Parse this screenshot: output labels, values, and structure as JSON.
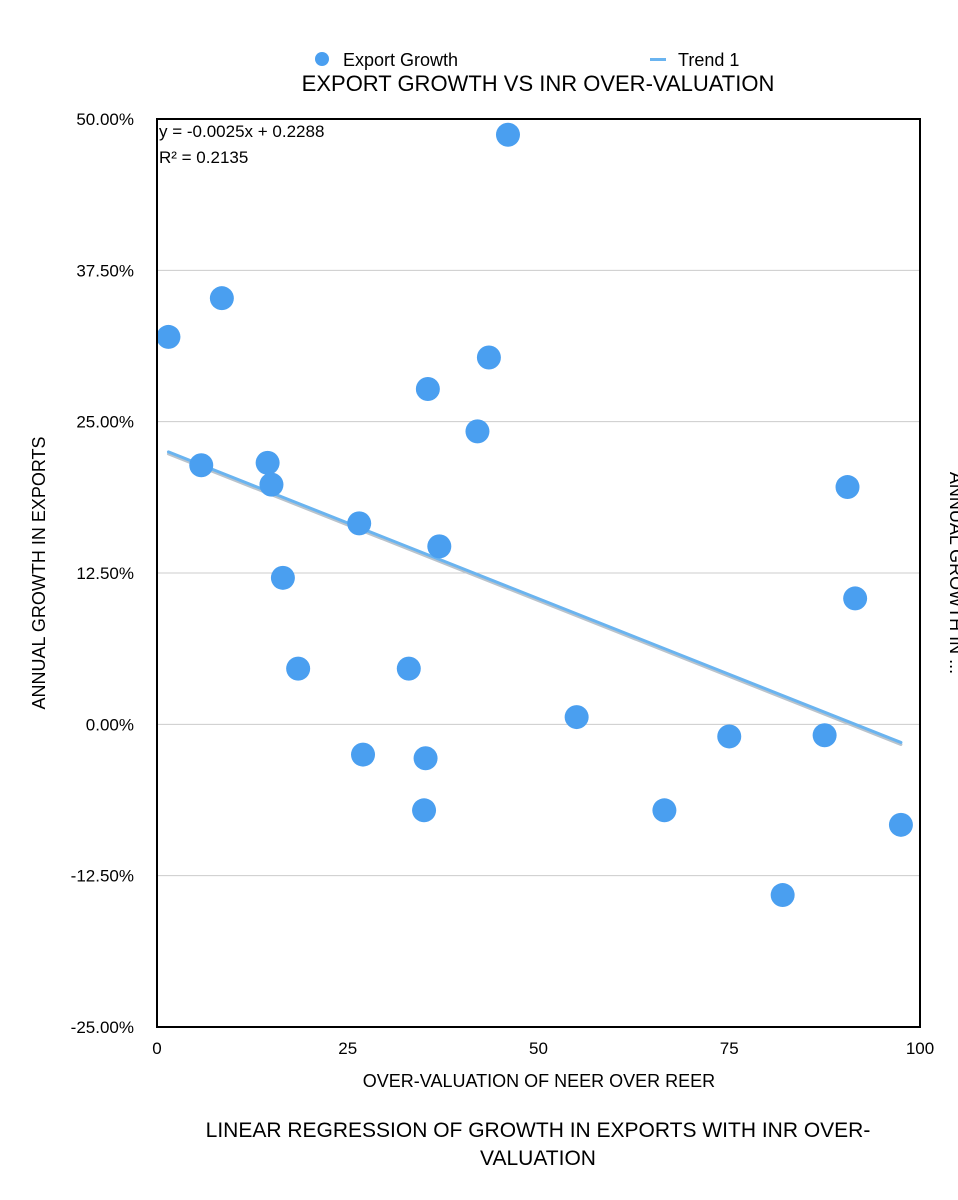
{
  "chart_data": {
    "type": "scatter",
    "title": "EXPORT GROWTH VS INR OVER-VALUATION",
    "xlabel": "OVER-VALUATION OF NEER OVER REER",
    "ylabel": "ANNUAL GROWTH IN EXPORTS",
    "secondary_ylabel_partial": "ANNUAL GROWTH IN ...",
    "caption": [
      "LINEAR REGRESSION OF GROWTH IN EXPORTS WITH INR OVER-",
      "VALUATION"
    ],
    "xlim": [
      0,
      100
    ],
    "ylim": [
      -0.25,
      0.5
    ],
    "x_ticks": [
      "0",
      "25",
      "50",
      "75",
      "100"
    ],
    "y_ticks": [
      "-25.00%",
      "-12.50%",
      "0.00%",
      "12.50%",
      "25.00%",
      "37.50%",
      "50.00%"
    ],
    "grid": "horizontal",
    "legend": {
      "placement": "top",
      "items": [
        {
          "label": "Export Growth",
          "marker": "dot",
          "color": "#4a9ff0"
        },
        {
          "label": "Trend 1",
          "marker": "line",
          "color": "#6ab4f0"
        }
      ]
    },
    "trendline": {
      "name": "Trend 1",
      "equation": "y = -0.0025x + 0.2288",
      "r_squared": "R² = 0.2135",
      "slope": -0.0025,
      "intercept": 0.2288,
      "x_range": [
        1.5,
        97.5
      ]
    },
    "series": [
      {
        "name": "Export Growth",
        "color": "#4a9ff0",
        "points": [
          {
            "x": 1.5,
            "y": 0.32
          },
          {
            "x": 5.8,
            "y": 0.214
          },
          {
            "x": 8.5,
            "y": 0.352
          },
          {
            "x": 14.5,
            "y": 0.216
          },
          {
            "x": 15.0,
            "y": 0.198
          },
          {
            "x": 16.5,
            "y": 0.121
          },
          {
            "x": 18.5,
            "y": 0.046
          },
          {
            "x": 26.5,
            "y": 0.166
          },
          {
            "x": 27.0,
            "y": -0.025
          },
          {
            "x": 33.0,
            "y": 0.046
          },
          {
            "x": 35.0,
            "y": -0.071
          },
          {
            "x": 35.2,
            "y": -0.028
          },
          {
            "x": 35.5,
            "y": 0.277
          },
          {
            "x": 37.0,
            "y": 0.147
          },
          {
            "x": 42.0,
            "y": 0.242
          },
          {
            "x": 43.5,
            "y": 0.303
          },
          {
            "x": 46.0,
            "y": 0.487
          },
          {
            "x": 55.0,
            "y": 0.006
          },
          {
            "x": 66.5,
            "y": -0.071
          },
          {
            "x": 75.0,
            "y": -0.01
          },
          {
            "x": 82.0,
            "y": -0.141
          },
          {
            "x": 87.5,
            "y": -0.009
          },
          {
            "x": 90.5,
            "y": 0.196
          },
          {
            "x": 91.5,
            "y": 0.104
          },
          {
            "x": 97.5,
            "y": -0.083
          }
        ]
      }
    ]
  }
}
